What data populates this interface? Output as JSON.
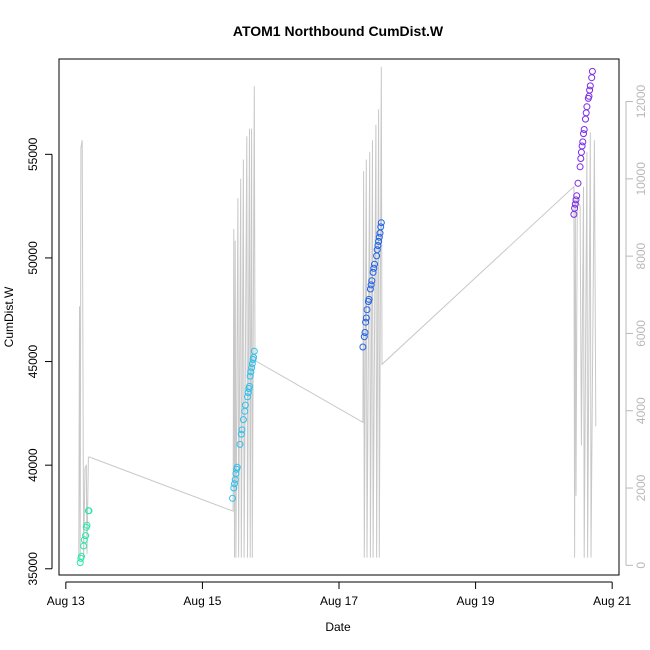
{
  "chart_data": {
    "type": "scatter",
    "title": "ATOM1 Northbound CumDist.W",
    "xlabel": "Date",
    "ylabel": "CumDist.W",
    "x_unit": "days (August, day of month)",
    "xlim": [
      12.9,
      21.1
    ],
    "ylim": [
      34700,
      59600
    ],
    "y2lim": [
      -250,
      13100
    ],
    "x_ticks": [
      {
        "value": 13,
        "label": "Aug 13"
      },
      {
        "value": 15,
        "label": "Aug 15"
      },
      {
        "value": 17,
        "label": "Aug 17"
      },
      {
        "value": 19,
        "label": "Aug 19"
      },
      {
        "value": 21,
        "label": "Aug 21"
      }
    ],
    "y_ticks": [
      35000,
      40000,
      45000,
      50000,
      55000
    ],
    "y2_ticks": [
      0,
      2000,
      4000,
      6000,
      8000,
      10000,
      12000
    ],
    "colors": {
      "line": "#c8c8c8",
      "right_axis": "#b8b8b8",
      "day1": "#26e8a8",
      "day2": "#2ec0ee",
      "day3": "#1f62e6",
      "day4": "#7a2be8"
    },
    "series": [
      {
        "color_key": "day1",
        "points": [
          [
            13.21,
            35300
          ],
          [
            13.22,
            35500
          ],
          [
            13.23,
            35600
          ],
          [
            13.26,
            36100
          ],
          [
            13.27,
            36400
          ],
          [
            13.29,
            36600
          ],
          [
            13.3,
            37000
          ],
          [
            13.31,
            37100
          ],
          [
            13.33,
            37800
          ],
          [
            13.34,
            37800
          ]
        ]
      },
      {
        "color_key": "day2",
        "points": [
          [
            15.44,
            38400
          ],
          [
            15.46,
            38900
          ],
          [
            15.47,
            39100
          ],
          [
            15.48,
            39300
          ],
          [
            15.49,
            39600
          ],
          [
            15.5,
            39800
          ],
          [
            15.51,
            39900
          ],
          [
            15.55,
            41000
          ],
          [
            15.57,
            41500
          ],
          [
            15.58,
            41700
          ],
          [
            15.6,
            42200
          ],
          [
            15.62,
            42600
          ],
          [
            15.63,
            42900
          ],
          [
            15.66,
            43300
          ],
          [
            15.67,
            43500
          ],
          [
            15.68,
            43700
          ],
          [
            15.69,
            43800
          ],
          [
            15.7,
            44300
          ],
          [
            15.71,
            44500
          ],
          [
            15.72,
            44700
          ],
          [
            15.73,
            44900
          ],
          [
            15.74,
            45100
          ],
          [
            15.75,
            45200
          ],
          [
            15.76,
            45500
          ]
        ]
      },
      {
        "color_key": "day3",
        "points": [
          [
            17.35,
            45700
          ],
          [
            17.37,
            46200
          ],
          [
            17.38,
            46400
          ],
          [
            17.39,
            46900
          ],
          [
            17.4,
            47100
          ],
          [
            17.41,
            47500
          ],
          [
            17.43,
            47900
          ],
          [
            17.44,
            48000
          ],
          [
            17.46,
            48500
          ],
          [
            17.47,
            48700
          ],
          [
            17.48,
            48900
          ],
          [
            17.5,
            49300
          ],
          [
            17.51,
            49500
          ],
          [
            17.52,
            49700
          ],
          [
            17.55,
            50100
          ],
          [
            17.56,
            50400
          ],
          [
            17.57,
            50600
          ],
          [
            17.58,
            50800
          ],
          [
            17.59,
            51000
          ],
          [
            17.6,
            51200
          ],
          [
            17.61,
            51500
          ],
          [
            17.62,
            51700
          ]
        ]
      },
      {
        "color_key": "day4",
        "points": [
          [
            20.44,
            52100
          ],
          [
            20.45,
            52400
          ],
          [
            20.46,
            52600
          ],
          [
            20.47,
            52800
          ],
          [
            20.48,
            53000
          ],
          [
            20.5,
            53600
          ],
          [
            20.53,
            54400
          ],
          [
            20.54,
            54800
          ],
          [
            20.55,
            55100
          ],
          [
            20.56,
            55400
          ],
          [
            20.57,
            55600
          ],
          [
            20.58,
            56000
          ],
          [
            20.59,
            56200
          ],
          [
            20.61,
            56700
          ],
          [
            20.62,
            57000
          ],
          [
            20.63,
            57300
          ],
          [
            20.65,
            57700
          ],
          [
            20.66,
            57800
          ],
          [
            20.67,
            58100
          ],
          [
            20.68,
            58300
          ],
          [
            20.7,
            58700
          ],
          [
            20.71,
            59000
          ]
        ]
      }
    ],
    "line_series": {
      "axis": "right",
      "points": [
        [
          13.19,
          200
        ],
        [
          13.2,
          6700
        ],
        [
          13.21,
          200
        ],
        [
          13.22,
          10800
        ],
        [
          13.24,
          11000
        ],
        [
          13.26,
          200
        ],
        [
          13.28,
          2500
        ],
        [
          13.3,
          2600
        ],
        [
          13.31,
          300
        ],
        [
          13.33,
          2800
        ],
        [
          13.35,
          2800
        ],
        [
          15.45,
          1400
        ],
        [
          15.46,
          8700
        ],
        [
          15.47,
          200
        ],
        [
          15.48,
          8400
        ],
        [
          15.49,
          200
        ],
        [
          15.52,
          9500
        ],
        [
          15.53,
          200
        ],
        [
          15.56,
          10000
        ],
        [
          15.57,
          200
        ],
        [
          15.6,
          10500
        ],
        [
          15.61,
          200
        ],
        [
          15.65,
          11100
        ],
        [
          15.66,
          200
        ],
        [
          15.69,
          11300
        ],
        [
          15.7,
          200
        ],
        [
          15.72,
          11300
        ],
        [
          15.73,
          200
        ],
        [
          15.76,
          12400
        ],
        [
          15.77,
          5300
        ],
        [
          17.35,
          3700
        ],
        [
          17.36,
          10200
        ],
        [
          17.37,
          200
        ],
        [
          17.4,
          10500
        ],
        [
          17.41,
          200
        ],
        [
          17.45,
          10700
        ],
        [
          17.46,
          200
        ],
        [
          17.49,
          11000
        ],
        [
          17.5,
          200
        ],
        [
          17.54,
          11400
        ],
        [
          17.55,
          200
        ],
        [
          17.58,
          11800
        ],
        [
          17.59,
          200
        ],
        [
          17.62,
          12900
        ],
        [
          17.63,
          5200
        ],
        [
          20.44,
          9800
        ],
        [
          20.45,
          200
        ],
        [
          20.46,
          9400
        ],
        [
          20.47,
          1800
        ],
        [
          20.49,
          9500
        ],
        [
          20.5,
          9400
        ],
        [
          20.53,
          9300
        ],
        [
          20.55,
          3100
        ],
        [
          20.58,
          9800
        ],
        [
          20.59,
          200
        ],
        [
          20.63,
          10700
        ],
        [
          20.64,
          200
        ],
        [
          20.68,
          11200
        ],
        [
          20.69,
          200
        ],
        [
          20.74,
          11000
        ],
        [
          20.76,
          3600
        ]
      ]
    }
  }
}
